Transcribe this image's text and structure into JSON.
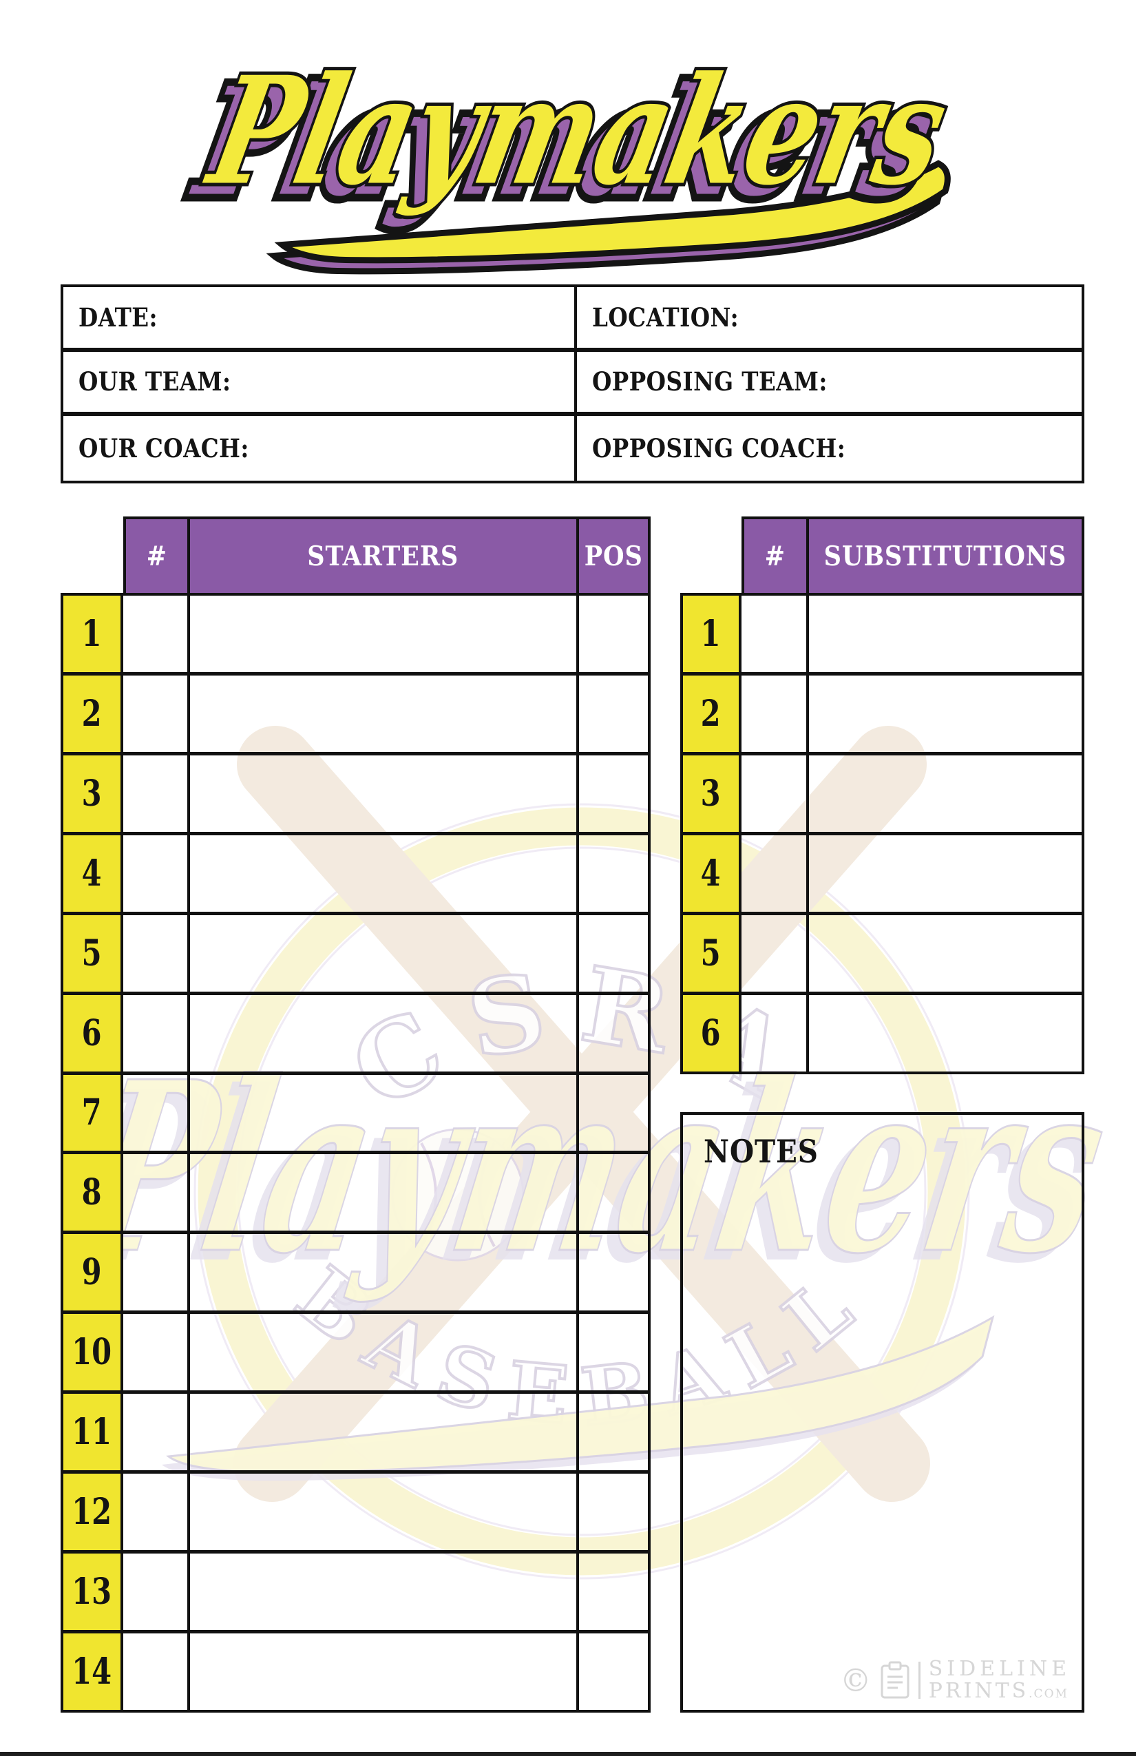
{
  "logo": {
    "text": "Playmakers"
  },
  "colors": {
    "purple": "#8a5aa6",
    "yellow": "#f0e52f",
    "logo_yellow": "#f3ea3c",
    "logo_purple": "#9a64ab",
    "outline_black": "#141414",
    "watermark_cream": "#f3eadf",
    "brand_gray": "#d6d6d6"
  },
  "info": {
    "rows": [
      {
        "left": "DATE:",
        "right": "LOCATION:"
      },
      {
        "left": "OUR TEAM:",
        "right": "OPPOSING TEAM:"
      },
      {
        "left": "OUR COACH:",
        "right": "OPPOSING COACH:"
      }
    ]
  },
  "starters": {
    "headers": [
      "#",
      "STARTERS",
      "POS"
    ],
    "rows": [
      {
        "num": "1",
        "jersey": "",
        "name": "",
        "pos": ""
      },
      {
        "num": "2",
        "jersey": "",
        "name": "",
        "pos": ""
      },
      {
        "num": "3",
        "jersey": "",
        "name": "",
        "pos": ""
      },
      {
        "num": "4",
        "jersey": "",
        "name": "",
        "pos": ""
      },
      {
        "num": "5",
        "jersey": "",
        "name": "",
        "pos": ""
      },
      {
        "num": "6",
        "jersey": "",
        "name": "",
        "pos": ""
      },
      {
        "num": "7",
        "jersey": "",
        "name": "",
        "pos": ""
      },
      {
        "num": "8",
        "jersey": "",
        "name": "",
        "pos": ""
      },
      {
        "num": "9",
        "jersey": "",
        "name": "",
        "pos": ""
      },
      {
        "num": "10",
        "jersey": "",
        "name": "",
        "pos": ""
      },
      {
        "num": "11",
        "jersey": "",
        "name": "",
        "pos": ""
      },
      {
        "num": "12",
        "jersey": "",
        "name": "",
        "pos": ""
      },
      {
        "num": "13",
        "jersey": "",
        "name": "",
        "pos": ""
      },
      {
        "num": "14",
        "jersey": "",
        "name": "",
        "pos": ""
      }
    ]
  },
  "substitutions": {
    "headers": [
      "#",
      "SUBSTITUTIONS"
    ],
    "rows": [
      {
        "num": "1",
        "jersey": "",
        "name": ""
      },
      {
        "num": "2",
        "jersey": "",
        "name": ""
      },
      {
        "num": "3",
        "jersey": "",
        "name": ""
      },
      {
        "num": "4",
        "jersey": "",
        "name": ""
      },
      {
        "num": "5",
        "jersey": "",
        "name": ""
      },
      {
        "num": "6",
        "jersey": "",
        "name": ""
      }
    ]
  },
  "notes": {
    "label": "NOTES"
  },
  "watermark": {
    "top_text": "CSRA",
    "script_text": "Playmakers",
    "bottom_text": "BASEBALL"
  },
  "footer": {
    "copyright": "©",
    "brand_line1": "SIDELINE",
    "brand_line2": "PRINTS",
    "brand_suffix": ".com"
  }
}
